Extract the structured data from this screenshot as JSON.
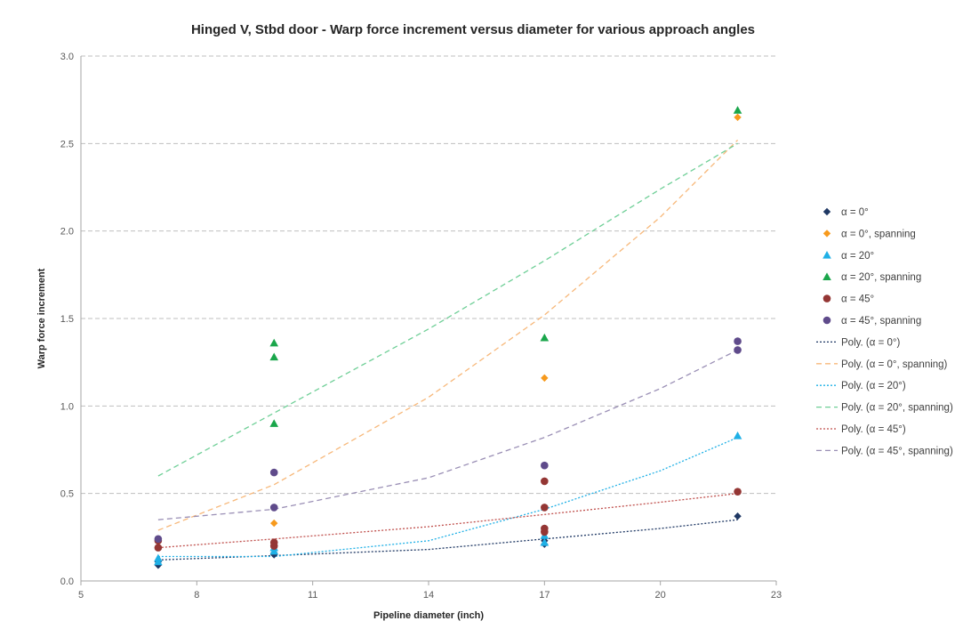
{
  "chart_data": {
    "type": "scatter",
    "title": "Hinged V, Stbd door - Warp force increment versus diameter for various approach angles",
    "xlabel": "Pipeline diameter  (inch)",
    "ylabel": "Warp force increment",
    "xlim": [
      5,
      23
    ],
    "ylim": [
      0,
      3.0
    ],
    "xticks": [
      "5",
      "8",
      "11",
      "14",
      "17",
      "20",
      "23"
    ],
    "yticks": [
      "0.0",
      "0.5",
      "1.0",
      "1.5",
      "2.0",
      "2.5",
      "3.0"
    ],
    "grid": "horizontal dashed",
    "legend_position": "right",
    "series": [
      {
        "name": "α = 0°",
        "marker": "diamond",
        "color": "#1f3864",
        "points": [
          [
            7,
            0.09
          ],
          [
            7,
            0.11
          ],
          [
            10,
            0.15
          ],
          [
            10,
            0.16
          ],
          [
            17,
            0.21
          ],
          [
            17,
            0.23
          ],
          [
            22,
            0.37
          ]
        ]
      },
      {
        "name": "α = 0°, spanning",
        "marker": "diamond",
        "color": "#f79a1d",
        "points": [
          [
            10,
            0.33
          ],
          [
            17,
            1.16
          ],
          [
            22,
            2.65
          ]
        ]
      },
      {
        "name": "α = 20°",
        "marker": "triangle",
        "color": "#1fb0e6",
        "points": [
          [
            7,
            0.11
          ],
          [
            7,
            0.13
          ],
          [
            10,
            0.17
          ],
          [
            10,
            0.19
          ],
          [
            17,
            0.22
          ],
          [
            17,
            0.26
          ],
          [
            22,
            0.83
          ]
        ]
      },
      {
        "name": "α = 20°, spanning",
        "marker": "triangle",
        "color": "#1aa64b",
        "points": [
          [
            10,
            0.9
          ],
          [
            10,
            1.28
          ],
          [
            10,
            1.36
          ],
          [
            17,
            1.39
          ],
          [
            22,
            2.69
          ]
        ]
      },
      {
        "name": "α = 45°",
        "marker": "circle",
        "color": "#943634",
        "points": [
          [
            7,
            0.19
          ],
          [
            7,
            0.23
          ],
          [
            10,
            0.2
          ],
          [
            10,
            0.22
          ],
          [
            17,
            0.28
          ],
          [
            17,
            0.3
          ],
          [
            17,
            0.42
          ],
          [
            17,
            0.57
          ],
          [
            22,
            0.51
          ]
        ]
      },
      {
        "name": "α = 45°, spanning",
        "marker": "circle",
        "color": "#5f4b8b",
        "points": [
          [
            7,
            0.24
          ],
          [
            10,
            0.42
          ],
          [
            10,
            0.62
          ],
          [
            17,
            0.66
          ],
          [
            22,
            1.32
          ],
          [
            22,
            1.37
          ]
        ]
      }
    ],
    "trendlines": [
      {
        "name": "Poly. (α = 0°)",
        "color": "#1f3864",
        "dash": "2,2",
        "points": [
          [
            7,
            0.12
          ],
          [
            10,
            0.145
          ],
          [
            14,
            0.18
          ],
          [
            17,
            0.24
          ],
          [
            20,
            0.3
          ],
          [
            22,
            0.35
          ]
        ]
      },
      {
        "name": "Poly. (α = 0°, spanning)",
        "color": "#f7b87a",
        "dash": "6,4",
        "points": [
          [
            7,
            0.29
          ],
          [
            10,
            0.55
          ],
          [
            14,
            1.05
          ],
          [
            17,
            1.52
          ],
          [
            20,
            2.08
          ],
          [
            22,
            2.52
          ]
        ]
      },
      {
        "name": "Poly. (α = 20°)",
        "color": "#1fb0e6",
        "dash": "2,2",
        "points": [
          [
            7,
            0.14
          ],
          [
            10,
            0.14
          ],
          [
            14,
            0.23
          ],
          [
            17,
            0.41
          ],
          [
            20,
            0.63
          ],
          [
            22,
            0.82
          ]
        ]
      },
      {
        "name": "Poly. (α = 20°, spanning)",
        "color": "#6fcf97",
        "dash": "6,4",
        "points": [
          [
            7,
            0.6
          ],
          [
            10,
            0.96
          ],
          [
            14,
            1.44
          ],
          [
            17,
            1.83
          ],
          [
            20,
            2.24
          ],
          [
            22,
            2.5
          ]
        ]
      },
      {
        "name": "Poly. (α = 45°)",
        "color": "#c0504d",
        "dash": "2,2",
        "points": [
          [
            7,
            0.19
          ],
          [
            10,
            0.24
          ],
          [
            14,
            0.31
          ],
          [
            17,
            0.38
          ],
          [
            20,
            0.45
          ],
          [
            22,
            0.5
          ]
        ]
      },
      {
        "name": "Poly. (α = 45°, spanning)",
        "color": "#9a8fb5",
        "dash": "6,4",
        "points": [
          [
            7,
            0.35
          ],
          [
            10,
            0.41
          ],
          [
            14,
            0.59
          ],
          [
            17,
            0.82
          ],
          [
            20,
            1.1
          ],
          [
            22,
            1.32
          ]
        ]
      }
    ]
  }
}
